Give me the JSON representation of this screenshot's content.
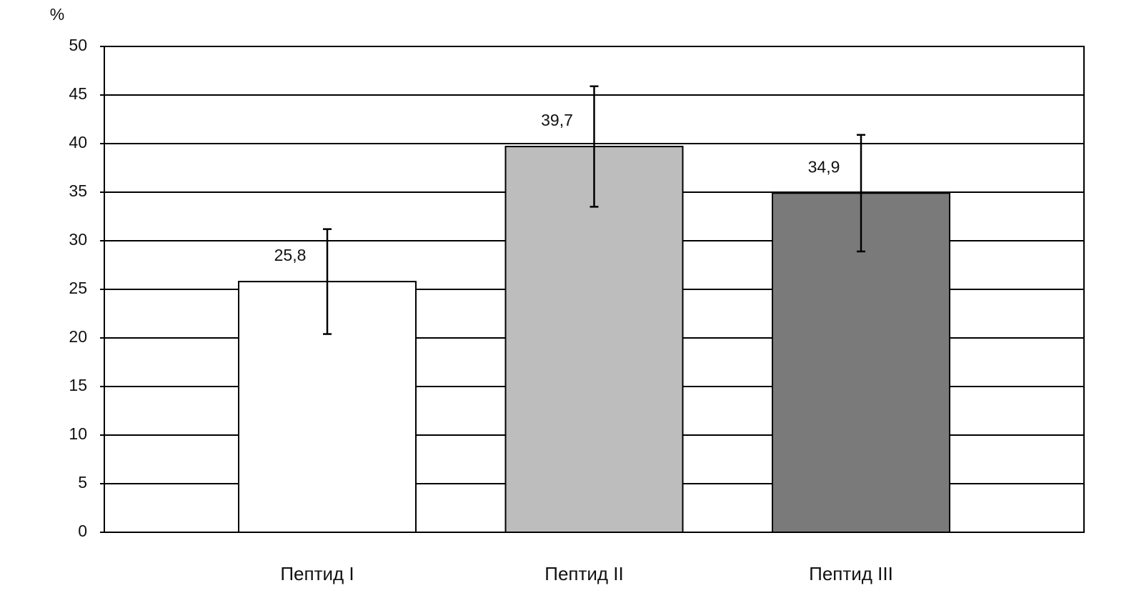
{
  "chart_data": {
    "type": "bar",
    "y_label": "%",
    "categories": [
      "Пептид I",
      "Пептид II",
      "Пептид III"
    ],
    "values": [
      25.8,
      39.7,
      34.9
    ],
    "value_labels": [
      "25,8",
      "39,7",
      "34,9"
    ],
    "errors": [
      5.4,
      6.2,
      6.0
    ],
    "colors": [
      "#ffffff",
      "#bdbdbd",
      "#7a7a7a"
    ],
    "ylim": [
      0,
      50
    ],
    "yticks": [
      0,
      5,
      10,
      15,
      20,
      25,
      30,
      35,
      40,
      45,
      50
    ],
    "grid": true
  }
}
